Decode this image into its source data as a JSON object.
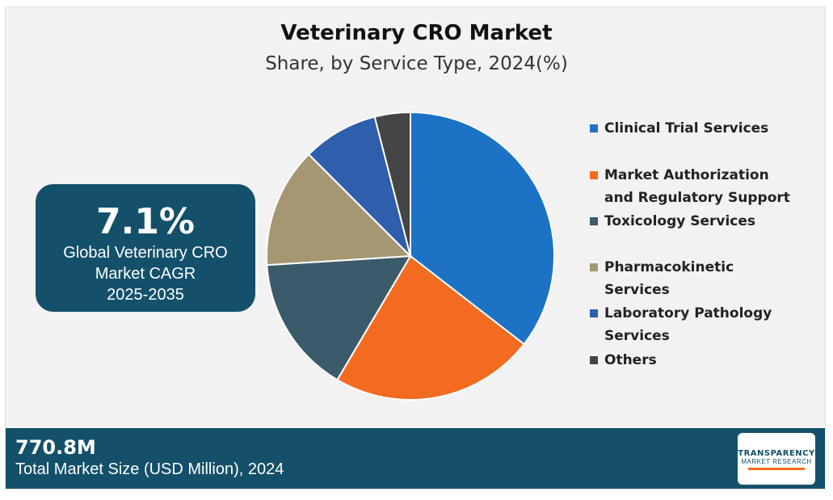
{
  "title": "Veterinary CRO Market",
  "subtitle": "Share, by Service Type, 2024(%)",
  "cagr": {
    "value": "7.1%",
    "label": "Global Veterinary CRO Market CAGR",
    "years": "2025-2035"
  },
  "footer": {
    "value": "770.8M",
    "label": "Total Market Size (USD Million), 2024",
    "logo_line1": "TRANSPARENCY",
    "logo_line2": "MARKET RESEARCH"
  },
  "chart_data": {
    "type": "pie",
    "title": "Veterinary CRO Market",
    "subtitle": "Share, by Service Type, 2024(%)",
    "legend_position": "right",
    "slices": [
      {
        "label": "Clinical Trial Services",
        "value": 35.5,
        "color": "#1c72c4"
      },
      {
        "label": "Market Authorization and Regulatory Support",
        "value": 23.0,
        "color": "#f36b21"
      },
      {
        "label": "Toxicology Services",
        "value": 15.5,
        "color": "#3b5b6a"
      },
      {
        "label": "Pharmacokinetic Services",
        "value": 13.5,
        "color": "#a59771"
      },
      {
        "label": "Laboratory Pathology Services",
        "value": 8.5,
        "color": "#2f5fac"
      },
      {
        "label": "Others",
        "value": 4.0,
        "color": "#454545"
      }
    ]
  }
}
